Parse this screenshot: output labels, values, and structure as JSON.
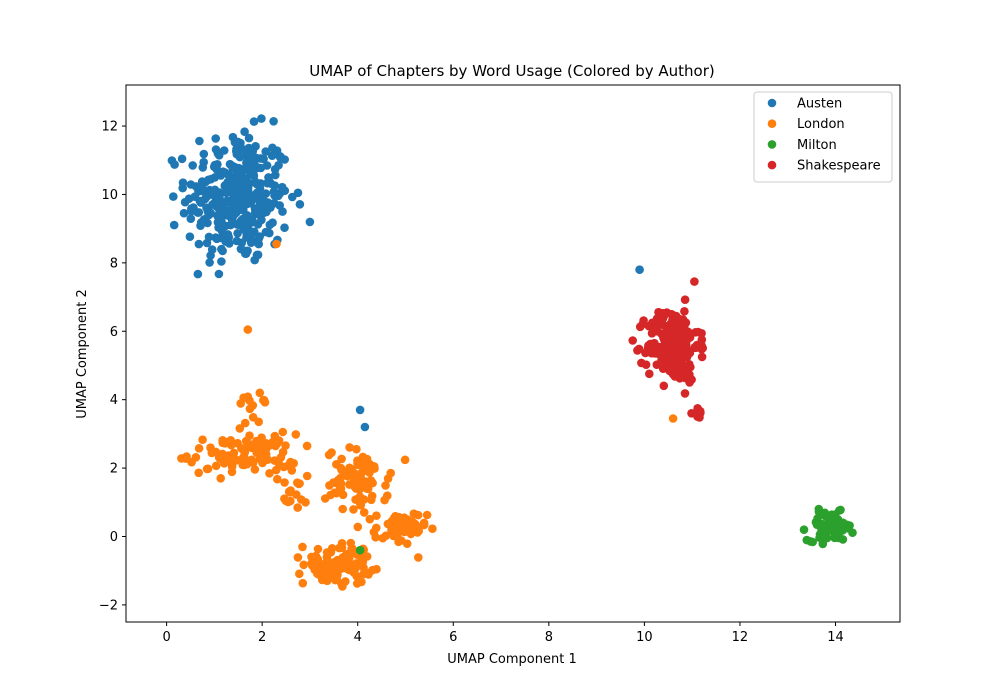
{
  "chart_data": {
    "type": "scatter",
    "title": "UMAP of Chapters by Word Usage (Colored by Author)",
    "xlabel": "UMAP Component 1",
    "ylabel": "UMAP Component 2",
    "xlim": [
      -0.85,
      15.35
    ],
    "ylim": [
      -2.5,
      13.2
    ],
    "xticks": [
      0,
      2,
      4,
      6,
      8,
      10,
      12,
      14
    ],
    "yticks": [
      -2,
      0,
      2,
      4,
      6,
      8,
      10,
      12
    ],
    "legend_position": "top-right",
    "grid": false,
    "series": [
      {
        "name": "Austen",
        "color": "#1f77b4",
        "clusters": [
          {
            "center": [
              1.5,
              9.9
            ],
            "spread": [
              0.9,
              1.6
            ],
            "count": 340,
            "xrange": [
              -0.2,
              3.2
            ],
            "yrange": [
              6.5,
              12.5
            ]
          }
        ],
        "outliers": [
          [
            9.9,
            7.8
          ],
          [
            4.05,
            3.7
          ],
          [
            4.15,
            3.2
          ]
        ]
      },
      {
        "name": "London",
        "color": "#ff7f0e",
        "clusters": [
          {
            "center": [
              1.6,
              2.4
            ],
            "spread": [
              0.95,
              0.5
            ],
            "count": 95,
            "xrange": [
              0.0,
              3.0
            ],
            "yrange": [
              1.7,
              3.2
            ]
          },
          {
            "center": [
              1.8,
              3.7
            ],
            "spread": [
              0.25,
              0.4
            ],
            "count": 12,
            "xrange": [
              1.5,
              2.1
            ],
            "yrange": [
              3.3,
              4.8
            ]
          },
          {
            "center": [
              2.7,
              1.4
            ],
            "spread": [
              0.4,
              0.6
            ],
            "count": 20,
            "xrange": [
              2.1,
              3.2
            ],
            "yrange": [
              0.8,
              2.2
            ]
          },
          {
            "center": [
              4.0,
              1.6
            ],
            "spread": [
              0.55,
              0.8
            ],
            "count": 80,
            "xrange": [
              3.0,
              5.0
            ],
            "yrange": [
              0.0,
              3.2
            ]
          },
          {
            "center": [
              3.6,
              -0.8
            ],
            "spread": [
              0.6,
              0.5
            ],
            "count": 95,
            "xrange": [
              2.7,
              4.5
            ],
            "yrange": [
              -1.85,
              0.5
            ]
          },
          {
            "center": [
              4.9,
              0.2
            ],
            "spread": [
              0.45,
              0.45
            ],
            "count": 55,
            "xrange": [
              4.1,
              5.8
            ],
            "yrange": [
              -0.8,
              1.2
            ]
          }
        ],
        "outliers": [
          [
            2.3,
            8.55
          ],
          [
            1.7,
            6.05
          ],
          [
            10.6,
            3.45
          ],
          [
            1.95,
            4.2
          ]
        ]
      },
      {
        "name": "Milton",
        "color": "#2ca02c",
        "clusters": [
          {
            "center": [
              13.9,
              0.3
            ],
            "spread": [
              0.4,
              0.35
            ],
            "count": 75,
            "xrange": [
              13.0,
              14.6
            ],
            "yrange": [
              -0.4,
              1.15
            ]
          }
        ],
        "outliers": [
          [
            4.05,
            -0.4
          ]
        ]
      },
      {
        "name": "Shakespeare",
        "color": "#d62728",
        "clusters": [
          {
            "center": [
              10.6,
              5.6
            ],
            "spread": [
              0.45,
              0.9
            ],
            "count": 210,
            "xrange": [
              9.5,
              11.6
            ],
            "yrange": [
              3.7,
              7.6
            ]
          },
          {
            "center": [
              11.05,
              3.6
            ],
            "spread": [
              0.15,
              0.25
            ],
            "count": 8,
            "xrange": [
              10.8,
              11.3
            ],
            "yrange": [
              3.1,
              4.0
            ]
          }
        ],
        "outliers": []
      }
    ]
  }
}
